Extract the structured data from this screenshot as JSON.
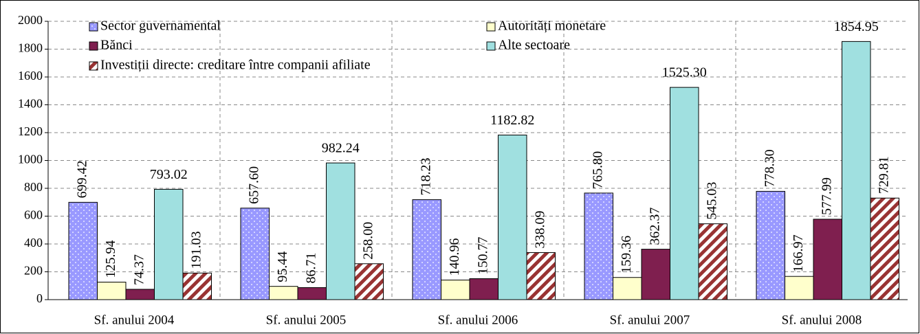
{
  "chart_data": {
    "type": "bar",
    "categories": [
      "Sf. anului 2004",
      "Sf. anului 2005",
      "Sf. anului 2006",
      "Sf. anului 2007",
      "Sf. anului 2008"
    ],
    "series": [
      {
        "name": "Sector guvernamental",
        "color": "#9999ff",
        "pattern": "dots",
        "values": [
          699.42,
          657.6,
          718.23,
          765.8,
          778.3
        ],
        "value_labels": [
          "699.42",
          "657.60",
          "718.23",
          "765.80",
          "778.30"
        ]
      },
      {
        "name": "Autorități monetare",
        "color": "#ffffcc",
        "values": [
          125.94,
          95.44,
          140.96,
          159.36,
          166.97
        ],
        "value_labels": [
          "125.94",
          "95.44",
          "140.96",
          "159.36",
          "166.97"
        ]
      },
      {
        "name": "Bănci",
        "color": "#7f1f4f",
        "values": [
          74.37,
          86.71,
          150.77,
          362.37,
          577.99
        ],
        "value_labels": [
          "74.37",
          "86.71",
          "150.77",
          "362.37",
          "577.99"
        ]
      },
      {
        "name": "Alte sectoare",
        "color": "#a0e0e0",
        "values": [
          793.02,
          982.24,
          1182.82,
          1525.3,
          1854.95
        ],
        "value_labels": [
          "793.02",
          "982.24",
          "1182.82",
          "1525.30",
          "1854.95"
        ]
      },
      {
        "name": "Investiții directe: creditare între companii afiliate",
        "color": "#993333",
        "pattern": "stripes",
        "values": [
          191.03,
          258.0,
          338.09,
          545.03,
          729.81
        ],
        "value_labels": [
          "191.03",
          "258.00",
          "338.09",
          "545.03",
          "729.81"
        ]
      }
    ],
    "ylim": [
      0,
      2000
    ],
    "yticks": [
      0,
      200,
      400,
      600,
      800,
      1000,
      1200,
      1400,
      1600,
      1800,
      2000
    ],
    "grid": true
  }
}
